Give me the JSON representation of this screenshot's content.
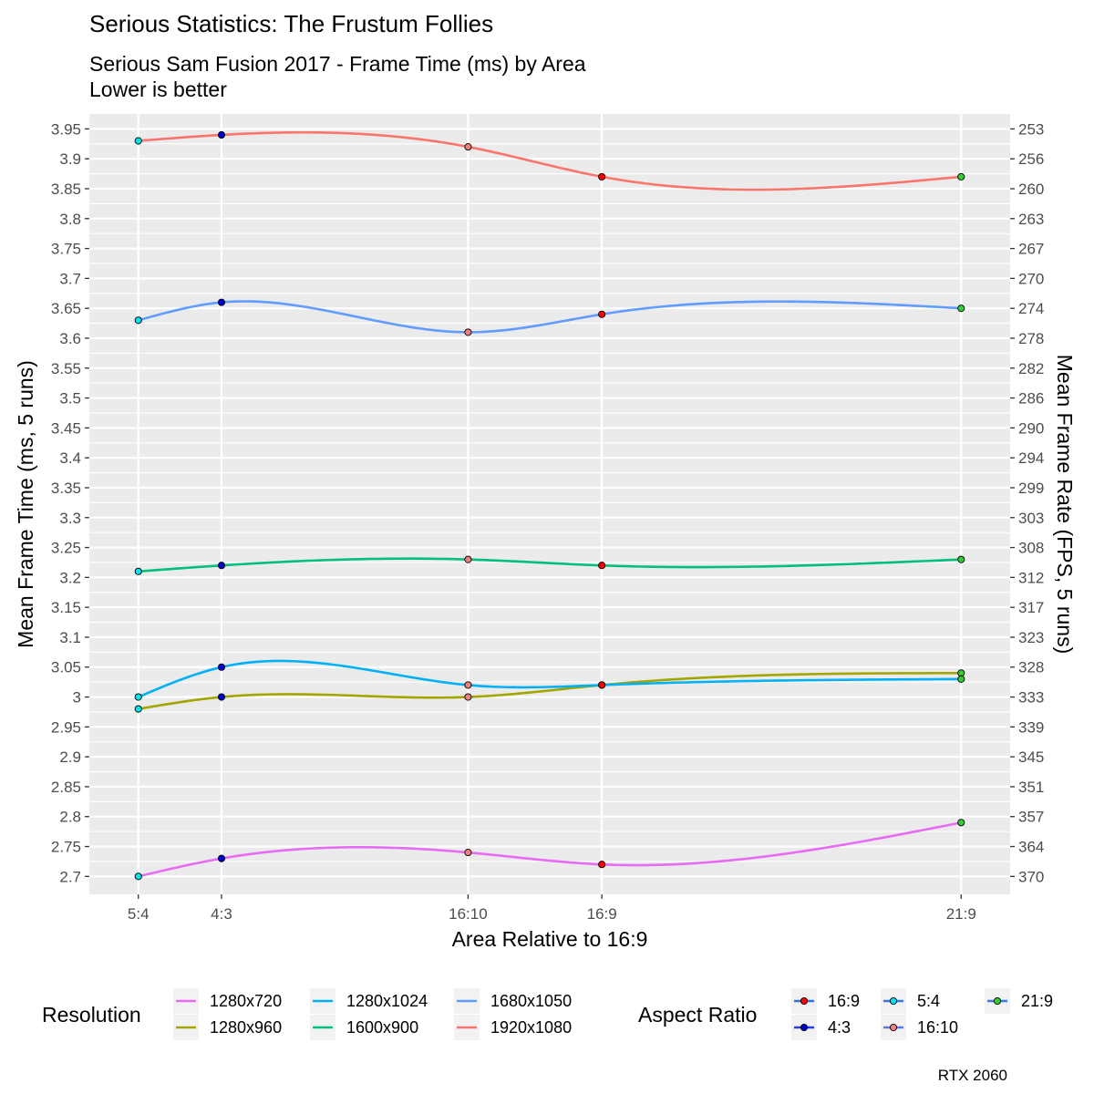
{
  "chart_data": {
    "type": "line",
    "title": "Serious Statistics: The Frustum Follies",
    "subtitle": [
      "Serious Sam Fusion 2017 - Frame Time (ms) by Area",
      "Lower is better"
    ],
    "xlabel": "Area Relative to 16:9",
    "ylabel": "Mean Frame Time (ms, 5 runs)",
    "ylabel_right": "Mean Frame Rate (FPS, 5 runs)",
    "caption": "RTX 2060",
    "x_categories": [
      "5:4",
      "4:3",
      "16:10",
      "16:9",
      "21:9"
    ],
    "x_values": [
      0.9375,
      1.0,
      1.1852,
      1.2857,
      1.5556
    ],
    "ylim": [
      2.67,
      3.975
    ],
    "yticks": [
      "2.7",
      "2.75",
      "2.8",
      "2.85",
      "2.9",
      "2.95",
      "3",
      "3.05",
      "3.1",
      "3.15",
      "3.2",
      "3.25",
      "3.3",
      "3.35",
      "3.4",
      "3.45",
      "3.5",
      "3.55",
      "3.6",
      "3.65",
      "3.7",
      "3.75",
      "3.8",
      "3.85",
      "3.9",
      "3.95"
    ],
    "yticks_right": [
      "370",
      "364",
      "357",
      "351",
      "345",
      "339",
      "333",
      "328",
      "323",
      "317",
      "312",
      "308",
      "303",
      "299",
      "294",
      "290",
      "286",
      "282",
      "278",
      "274",
      "270",
      "267",
      "263",
      "260",
      "256",
      "253"
    ],
    "grid": true,
    "legend_position": "bottom",
    "series": [
      {
        "name": "1280x720",
        "color": "#E76BF3",
        "values": [
          2.7,
          2.73,
          2.74,
          2.72,
          2.79
        ]
      },
      {
        "name": "1280x960",
        "color": "#A3A500",
        "values": [
          2.98,
          3.0,
          3.0,
          3.02,
          3.04
        ]
      },
      {
        "name": "1280x1024",
        "color": "#00B0F6",
        "values": [
          3.0,
          3.05,
          3.02,
          3.02,
          3.03
        ]
      },
      {
        "name": "1600x900",
        "color": "#00BF7D",
        "values": [
          3.21,
          3.22,
          3.23,
          3.22,
          3.23
        ]
      },
      {
        "name": "1680x1050",
        "color": "#619CFF",
        "values": [
          3.63,
          3.66,
          3.61,
          3.64,
          3.65
        ]
      },
      {
        "name": "1920x1080",
        "color": "#F8766D",
        "values": [
          3.93,
          3.94,
          3.92,
          3.87,
          3.87
        ]
      }
    ],
    "point_colors": {
      "5:4": "#00E5EE",
      "4:3": "#0000CD",
      "16:10": "#F08080",
      "16:9": "#FF0000",
      "21:9": "#32CD32"
    },
    "point_line_colors": {
      "5:4": "#3B78E7",
      "4:3": "#1E3FD8",
      "16:10": "#5A7BD8",
      "16:9": "#3B6FE0",
      "21:9": "#3B78E7"
    },
    "legend_resolution_title": "Resolution",
    "legend_aspect_title": "Aspect Ratio",
    "legend_aspect_order": [
      "16:9",
      "4:3",
      "5:4",
      "16:10",
      "21:9"
    ]
  }
}
